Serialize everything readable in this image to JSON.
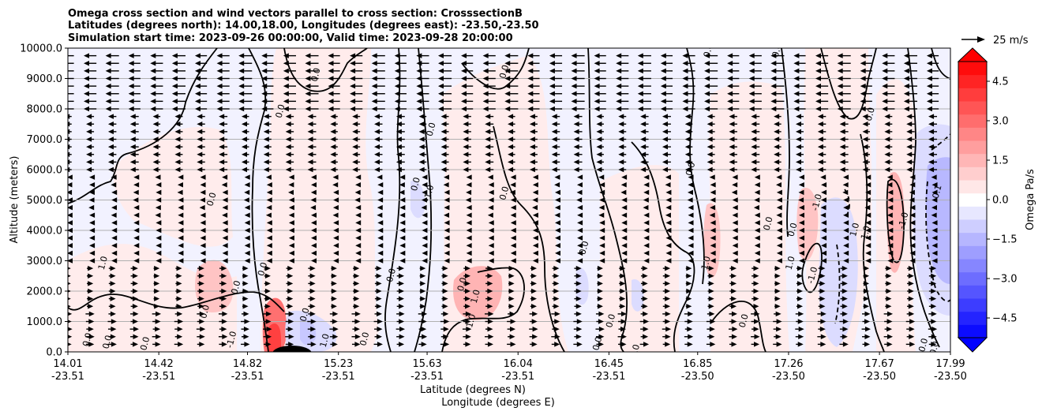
{
  "chart_data": {
    "type": "contour",
    "title_lines": [
      "Omega cross section and wind vectors parallel to cross section: CrosssectionB",
      "Latitudes (degrees north): 14.00,18.00, Longitudes (degrees east): -23.50,-23.50",
      "Simulation start time: 2023-09-26 00:00:00, Valid time: 2023-09-28 20:00:00"
    ],
    "ylabel": "Altitude (meters)",
    "xlabel_lines": [
      "Latitude (degrees N)",
      "Longitude (degrees E)"
    ],
    "ylim": [
      0,
      10000
    ],
    "y_ticks": [
      {
        "value": 0,
        "label": "0.0"
      },
      {
        "value": 1000,
        "label": "1000.0"
      },
      {
        "value": 2000,
        "label": "2000.0"
      },
      {
        "value": 3000,
        "label": "3000.0"
      },
      {
        "value": 4000,
        "label": "4000.0"
      },
      {
        "value": 5000,
        "label": "5000.0"
      },
      {
        "value": 6000,
        "label": "6000.0"
      },
      {
        "value": 7000,
        "label": "7000.0"
      },
      {
        "value": 8000,
        "label": "8000.0"
      },
      {
        "value": 9000,
        "label": "9000.0"
      },
      {
        "value": 10000,
        "label": "10000.0"
      }
    ],
    "xlim": [
      14.01,
      17.99
    ],
    "x_ticks": [
      {
        "lat": 14.01,
        "lat_label": "14.01",
        "lon_label": "-23.51"
      },
      {
        "lat": 14.42,
        "lat_label": "14.42",
        "lon_label": "-23.51"
      },
      {
        "lat": 14.82,
        "lat_label": "14.82",
        "lon_label": "-23.51"
      },
      {
        "lat": 15.23,
        "lat_label": "15.23",
        "lon_label": "-23.51"
      },
      {
        "lat": 15.63,
        "lat_label": "15.63",
        "lon_label": "-23.51"
      },
      {
        "lat": 16.04,
        "lat_label": "16.04",
        "lon_label": "-23.51"
      },
      {
        "lat": 16.45,
        "lat_label": "16.45",
        "lon_label": "-23.51"
      },
      {
        "lat": 16.85,
        "lat_label": "16.85",
        "lon_label": "-23.50"
      },
      {
        "lat": 17.26,
        "lat_label": "17.26",
        "lon_label": "-23.50"
      },
      {
        "lat": 17.67,
        "lat_label": "17.67",
        "lon_label": "-23.50"
      },
      {
        "lat": 17.99,
        "lat_label": "17.99",
        "lon_label": "-23.50"
      }
    ],
    "grid": "horizontal",
    "colorbar": {
      "label": "Omega Pa/s",
      "range": [
        -5.25,
        5.25
      ],
      "ticks": [
        {
          "value": 4.5,
          "label": "4.5"
        },
        {
          "value": 3.0,
          "label": "3.0"
        },
        {
          "value": 1.5,
          "label": "1.5"
        },
        {
          "value": 0.0,
          "label": "0.0"
        },
        {
          "value": -1.5,
          "label": "−1.5"
        },
        {
          "value": -3.0,
          "label": "−3.0"
        },
        {
          "value": -4.5,
          "label": "−4.5"
        }
      ],
      "colormap": "bwr",
      "extend": "both"
    },
    "quiver_key": {
      "label": "25 m/s",
      "speed": 25
    },
    "wind_vectors": {
      "levels": [
        250,
        500,
        750,
        1000,
        1250,
        1500,
        1750,
        2000,
        2250,
        2500,
        2750,
        3000,
        3250,
        3500,
        3750,
        4000,
        4250,
        4500,
        4750,
        5000,
        5250,
        5500,
        5750,
        6000,
        6250,
        6500,
        6750,
        7000,
        7250,
        7500,
        7750,
        8000,
        8250,
        8500,
        8750,
        9000,
        9250,
        9500,
        9750
      ],
      "lat_start": 14.01,
      "lat_step": 0.1,
      "count": 40
    },
    "contour_labels": [
      {
        "text": "0.0",
        "lat": 14.78,
        "alt": 2100
      },
      {
        "text": "1.0",
        "lat": 14.18,
        "alt": 2900
      },
      {
        "text": "0.0",
        "lat": 14.9,
        "alt": 2700
      },
      {
        "text": "-1.0",
        "lat": 14.76,
        "alt": 380
      },
      {
        "text": "0.0",
        "lat": 14.11,
        "alt": 380
      },
      {
        "text": "0.0",
        "lat": 14.2,
        "alt": 300
      },
      {
        "text": "0.0",
        "lat": 14.37,
        "alt": 250
      },
      {
        "text": "0.0",
        "lat": 14.64,
        "alt": 1300
      },
      {
        "text": "0.0",
        "lat": 14.67,
        "alt": 5000
      },
      {
        "text": "0.0",
        "lat": 14.98,
        "alt": 7900
      },
      {
        "text": "0.0",
        "lat": 15.14,
        "alt": 9100
      },
      {
        "text": "0.0",
        "lat": 15.09,
        "alt": 1200
      },
      {
        "text": "1.0",
        "lat": 15.18,
        "alt": 350
      },
      {
        "text": "0.0",
        "lat": 15.48,
        "alt": 2500
      },
      {
        "text": "0.0",
        "lat": 15.59,
        "alt": 5500
      },
      {
        "text": "-1.0",
        "lat": 15.65,
        "alt": 5200
      },
      {
        "text": "0.0",
        "lat": 15.66,
        "alt": 7300
      },
      {
        "text": "0.0",
        "lat": 15.36,
        "alt": 400
      },
      {
        "text": "0.0",
        "lat": 15.8,
        "alt": 2200
      },
      {
        "text": "1.0",
        "lat": 15.86,
        "alt": 1800
      },
      {
        "text": "1.0",
        "lat": 15.84,
        "alt": 1000
      },
      {
        "text": "0.0",
        "lat": 15.99,
        "alt": 9200
      },
      {
        "text": "0.0",
        "lat": 15.99,
        "alt": 5200
      },
      {
        "text": "0.0",
        "lat": 16.35,
        "alt": 3400
      },
      {
        "text": "0.0",
        "lat": 16.47,
        "alt": 1000
      },
      {
        "text": "0.0",
        "lat": 16.41,
        "alt": 250
      },
      {
        "text": "0.0",
        "lat": 16.58,
        "alt": 0
      },
      {
        "text": "0.0",
        "lat": 16.83,
        "alt": 6000
      },
      {
        "text": "0.0",
        "lat": 16.91,
        "alt": 9900
      },
      {
        "text": "1.0",
        "lat": 16.9,
        "alt": 2900
      },
      {
        "text": "0.0",
        "lat": 17.07,
        "alt": 1000
      },
      {
        "text": "0.0",
        "lat": 17.18,
        "alt": 4200
      },
      {
        "text": "0.0",
        "lat": 17.22,
        "alt": 9900
      },
      {
        "text": "0.0",
        "lat": 17.29,
        "alt": 4000
      },
      {
        "text": "1.0",
        "lat": 17.28,
        "alt": 2900
      },
      {
        "text": "-1.0",
        "lat": 17.4,
        "alt": 4900
      },
      {
        "text": "-1.0",
        "lat": 17.38,
        "alt": 2500
      },
      {
        "text": "1.0",
        "lat": 17.57,
        "alt": 4000
      },
      {
        "text": "1.0",
        "lat": 17.62,
        "alt": 3900
      },
      {
        "text": "0.0",
        "lat": 17.64,
        "alt": 7800
      },
      {
        "text": "-1.0",
        "lat": 17.79,
        "alt": 4300
      },
      {
        "text": "-0.1",
        "lat": 17.94,
        "alt": 5200
      },
      {
        "text": "0.0",
        "lat": 17.88,
        "alt": 200
      },
      {
        "text": "0.0",
        "lat": 17.93,
        "alt": 100
      }
    ]
  }
}
